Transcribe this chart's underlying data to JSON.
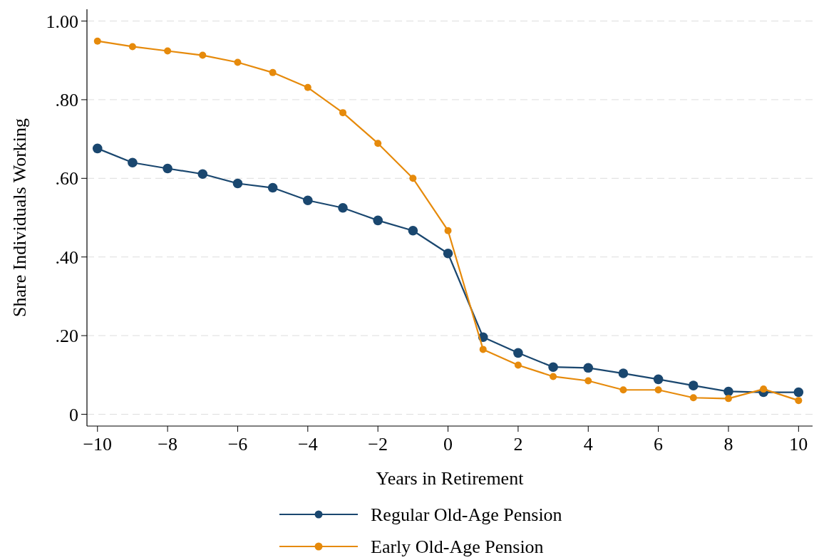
{
  "chart_data": {
    "type": "line",
    "xlabel": "Years in Retirement",
    "ylabel": "Share Individuals Working",
    "x": [
      -10,
      -9,
      -8,
      -7,
      -6,
      -5,
      -4,
      -3,
      -2,
      -1,
      0,
      1,
      2,
      3,
      4,
      5,
      6,
      7,
      8,
      9,
      10
    ],
    "series": [
      {
        "name": "Regular Old-Age Pension",
        "color": "#1a476f",
        "values": [
          0.676,
          0.64,
          0.625,
          0.611,
          0.587,
          0.576,
          0.544,
          0.525,
          0.493,
          0.467,
          0.409,
          0.196,
          0.156,
          0.12,
          0.118,
          0.104,
          0.089,
          0.073,
          0.058,
          0.056,
          0.056
        ]
      },
      {
        "name": "Early Old-Age Pension",
        "color": "#e68a0b",
        "values": [
          0.949,
          0.935,
          0.924,
          0.913,
          0.895,
          0.869,
          0.831,
          0.767,
          0.689,
          0.6,
          0.467,
          0.165,
          0.125,
          0.096,
          0.085,
          0.062,
          0.062,
          0.042,
          0.04,
          0.064,
          0.035
        ]
      }
    ],
    "xlim": [
      -10.3,
      10.4
    ],
    "xticks": [
      {
        "value": -10,
        "label": "−10"
      },
      {
        "value": -8,
        "label": "−8"
      },
      {
        "value": -6,
        "label": "−6"
      },
      {
        "value": -4,
        "label": "−4"
      },
      {
        "value": -2,
        "label": "−2"
      },
      0,
      2,
      4,
      6,
      8,
      10
    ],
    "ylim": [
      -0.03,
      1.03
    ],
    "yticks": [
      0,
      {
        "value": 0.2,
        "label": ".20"
      },
      {
        "value": 0.4,
        "label": ".40"
      },
      {
        "value": 0.6,
        "label": ".60"
      },
      {
        "value": 0.8,
        "label": ".80"
      },
      {
        "value": 1,
        "label": "1.00"
      }
    ],
    "grid": "y",
    "legend": "bottom",
    "marker": "circle",
    "line_style": "solid"
  }
}
